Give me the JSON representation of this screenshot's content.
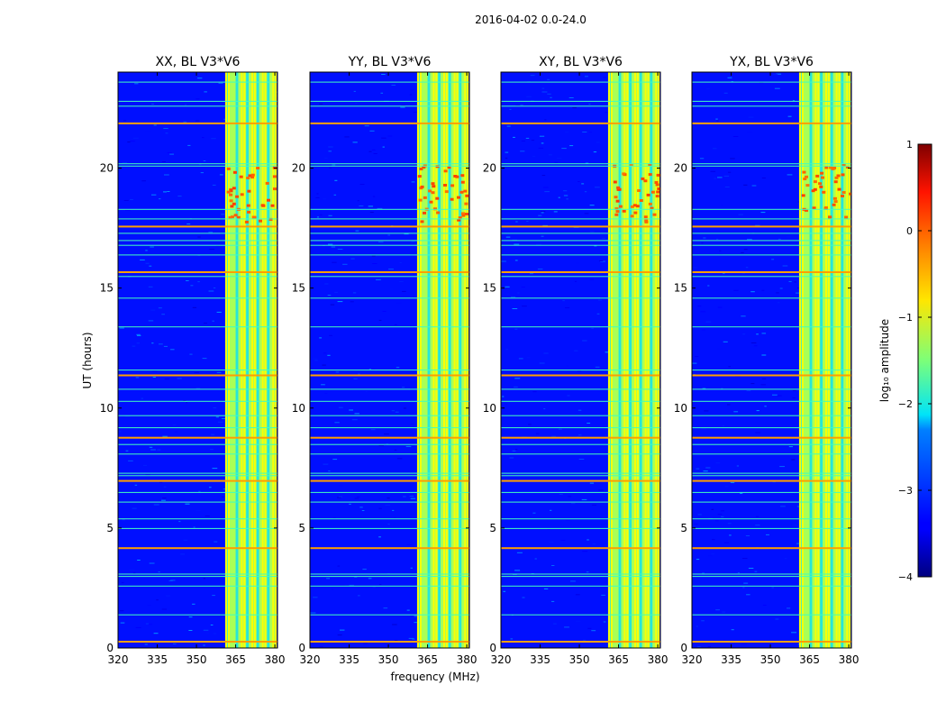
{
  "chart_data": {
    "type": "heatmap",
    "suptitle": "2016-04-02 0.0-24.0",
    "xlabel": "frequency (MHz)",
    "ylabel": "UT (hours)",
    "xlim": [
      320,
      381
    ],
    "ylim": [
      0,
      24
    ],
    "xticks": [
      320,
      335,
      350,
      365,
      380
    ],
    "yticks": [
      0,
      5,
      10,
      15,
      20
    ],
    "colorbar": {
      "label": "log₁₀ amplitude",
      "range": [
        -4,
        1
      ],
      "ticks": [
        "1",
        "0",
        "−1",
        "−2",
        "−3",
        "−4"
      ],
      "colormap": "jet"
    },
    "panels": [
      {
        "title": "XX, BL V3*V6"
      },
      {
        "title": "YY, BL V3*V6"
      },
      {
        "title": "XY, BL V3*V6"
      },
      {
        "title": "YX, BL V3*V6"
      }
    ],
    "rfi_band_MHz": [
      361,
      380
    ],
    "rfi_channels_MHz": [
      361,
      362,
      367,
      368,
      371,
      372,
      375,
      376,
      379,
      380
    ],
    "broadband_rfi_hours": [
      0.3,
      1.4,
      2.6,
      3.0,
      3.1,
      4.2,
      5.0,
      5.4,
      6.1,
      6.5,
      7.0,
      7.2,
      7.3,
      8.1,
      8.5,
      8.8,
      9.2,
      9.7,
      10.3,
      10.8,
      11.4,
      11.6,
      13.4,
      14.6,
      15.5,
      15.7,
      16.4,
      16.8,
      17.0,
      17.3,
      17.6,
      17.9,
      18.3,
      20.1,
      20.2,
      21.9,
      22.6,
      22.8,
      23.6
    ]
  }
}
